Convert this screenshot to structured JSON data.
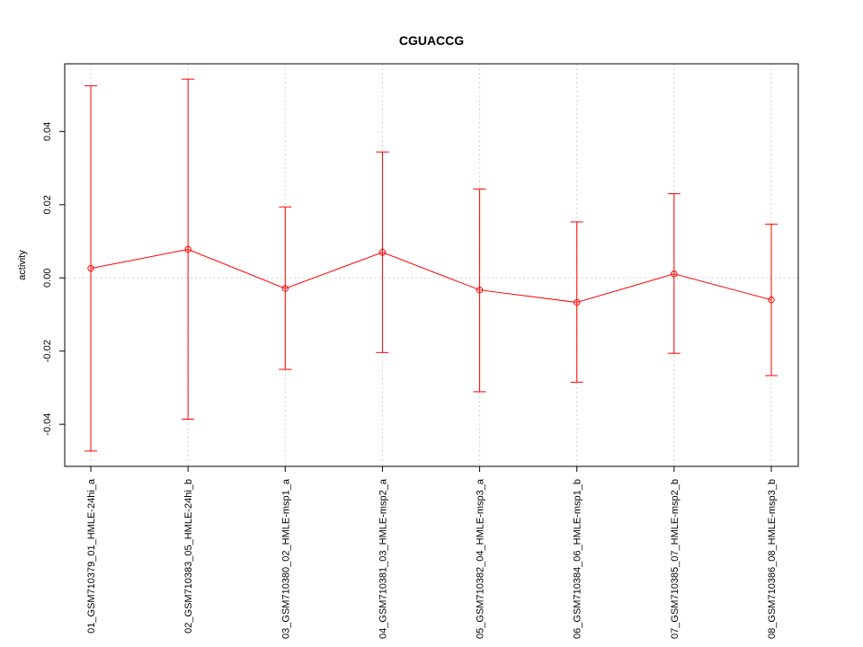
{
  "chart_data": {
    "type": "line",
    "title": "CGUACCG",
    "xlabel": "",
    "ylabel": "activity",
    "categories": [
      "01_GSM710379_01_HMLE-24hi_a",
      "02_GSM710383_05_HMLE-24hi_b",
      "03_GSM710380_02_HMLE-msp1_a",
      "04_GSM710381_03_HMLE-msp2_a",
      "05_GSM710382_04_HMLE-msp3_a",
      "06_GSM710384_06_HMLE-msp1_b",
      "07_GSM710385_07_HMLE-msp2_b",
      "08_GSM710386_08_HMLE-msp3_b"
    ],
    "values": [
      0.0026,
      0.0078,
      -0.0029,
      0.007,
      -0.0033,
      -0.0067,
      0.0011,
      -0.006
    ],
    "error_upper": [
      0.0525,
      0.0543,
      0.0194,
      0.0344,
      0.0243,
      0.0153,
      0.023,
      0.0147
    ],
    "error_lower": [
      -0.0473,
      -0.0386,
      -0.025,
      -0.0204,
      -0.0311,
      -0.0285,
      -0.0206,
      -0.0267
    ],
    "yticks": [
      -0.04,
      -0.02,
      0.0,
      0.02,
      0.04
    ],
    "ytick_labels": [
      "-0.04",
      "-0.02",
      "0.00",
      "0.02",
      "0.04"
    ],
    "ylim": [
      -0.0515,
      0.0585
    ],
    "grid": true,
    "series_color": "#ff0000",
    "grid_color": "#d3d3d3"
  }
}
